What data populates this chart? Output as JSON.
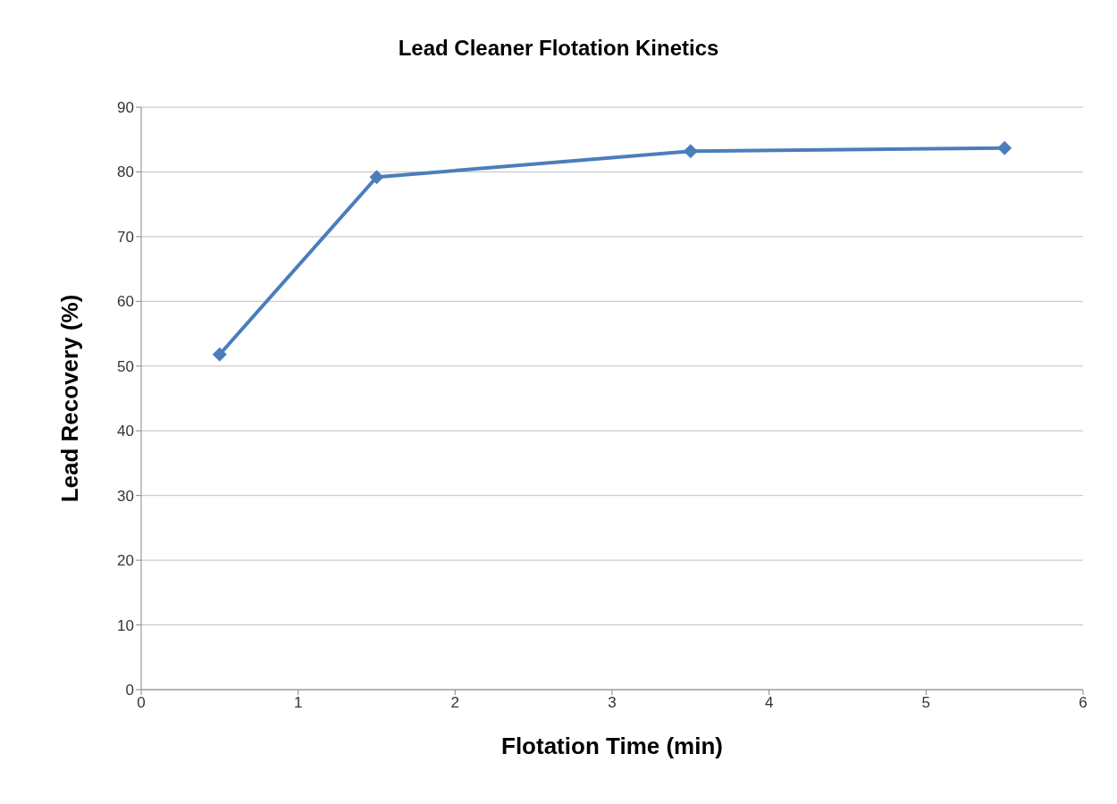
{
  "chart_data": {
    "type": "line",
    "title": "Lead Cleaner Flotation Kinetics",
    "xlabel": "Flotation Time (min)",
    "ylabel": "Lead Recovery (%)",
    "x": [
      0.5,
      1.5,
      3.5,
      5.5
    ],
    "series": [
      {
        "color": "#4a7ebb",
        "values": [
          51.8,
          79.2,
          83.2,
          83.7
        ]
      }
    ],
    "xlim": [
      0,
      6
    ],
    "xticks": [
      0,
      1,
      2,
      3,
      4,
      5,
      6
    ],
    "ylim": [
      0,
      90
    ],
    "yticks": [
      0,
      10,
      20,
      30,
      40,
      50,
      60,
      70,
      80,
      90
    ],
    "grid": "y",
    "legend": false,
    "marker": "diamond",
    "line_style": "solid"
  }
}
